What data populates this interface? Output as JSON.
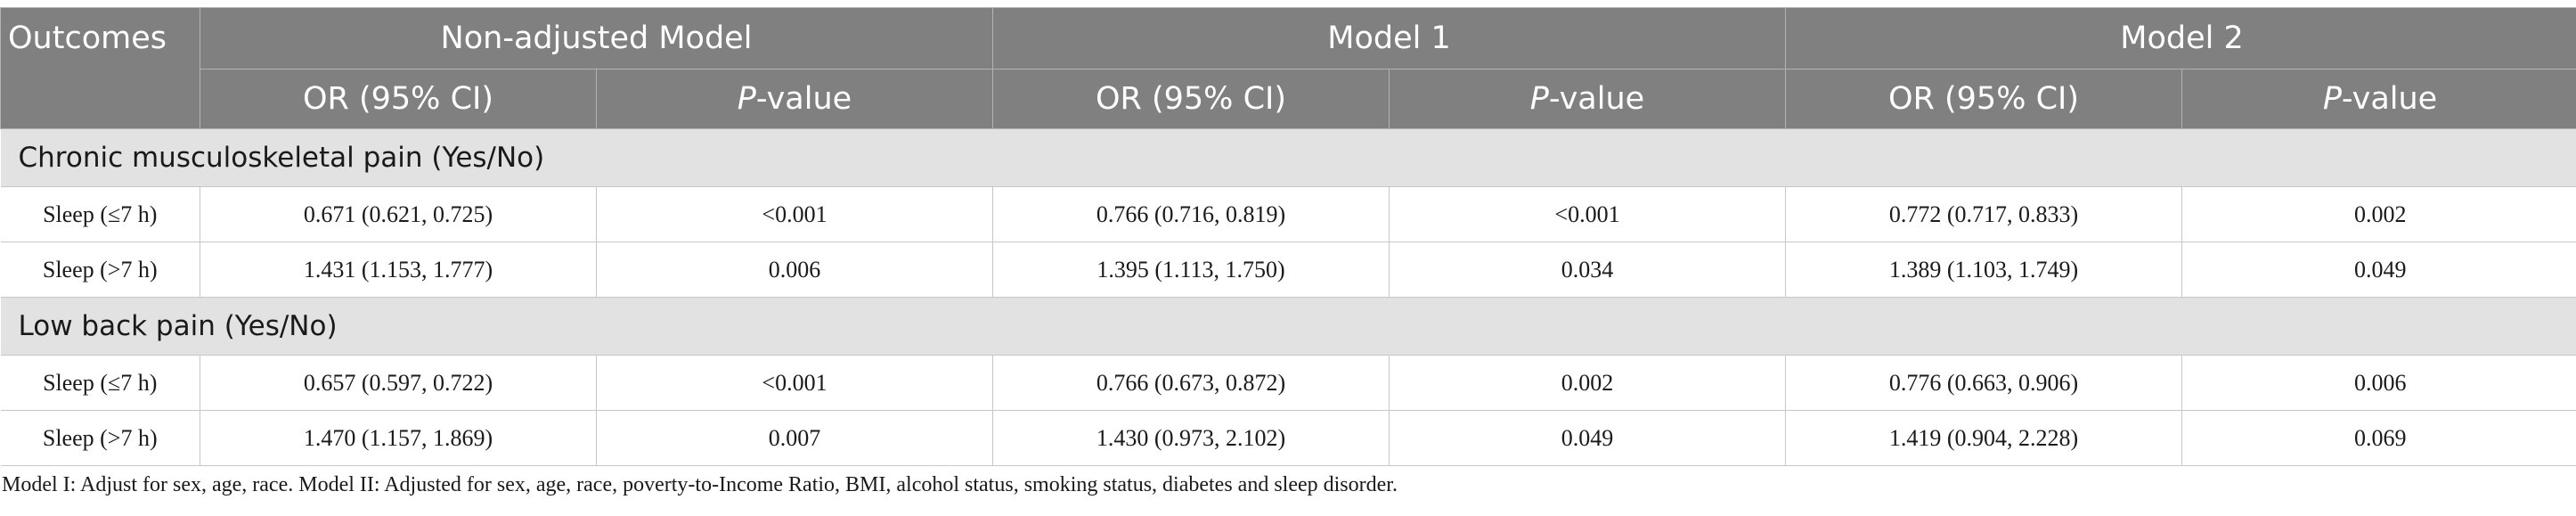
{
  "header": {
    "outcomes": "Outcomes",
    "models": [
      "Non-adjusted Model",
      "Model 1",
      "Model 2"
    ],
    "or_label": "OR (95% CI)",
    "p_italic": "P",
    "p_suffix": "-value"
  },
  "sections": [
    {
      "title": "Chronic musculoskeletal pain (Yes/No)",
      "rows": [
        {
          "label": "Sleep (≤7 h)",
          "values": [
            "0.671 (0.621, 0.725)",
            "<0.001",
            "0.766 (0.716, 0.819)",
            "<0.001",
            "0.772 (0.717, 0.833)",
            "0.002"
          ]
        },
        {
          "label": "Sleep (>7 h)",
          "values": [
            "1.431 (1.153, 1.777)",
            "0.006",
            "1.395 (1.113, 1.750)",
            "0.034",
            "1.389 (1.103, 1.749)",
            "0.049"
          ]
        }
      ]
    },
    {
      "title": "Low back pain (Yes/No)",
      "rows": [
        {
          "label": "Sleep (≤7 h)",
          "values": [
            "0.657 (0.597, 0.722)",
            "<0.001",
            "0.766 (0.673, 0.872)",
            "0.002",
            "0.776 (0.663, 0.906)",
            "0.006"
          ]
        },
        {
          "label": "Sleep (>7 h)",
          "values": [
            "1.470 (1.157, 1.869)",
            "0.007",
            "1.430 (0.973, 2.102)",
            "0.049",
            "1.419 (0.904, 2.228)",
            "0.069"
          ]
        }
      ]
    }
  ],
  "footnote": "Model I: Adjust for sex, age, race. Model II: Adjusted for sex, age, race, poverty-to-Income Ratio, BMI, alcohol status, smoking status, diabetes and sleep disorder.",
  "colors": {
    "header_bg": "#808080",
    "header_text": "#ffffff",
    "section_bg": "#e2e2e2",
    "border": "#c7c7c7"
  }
}
